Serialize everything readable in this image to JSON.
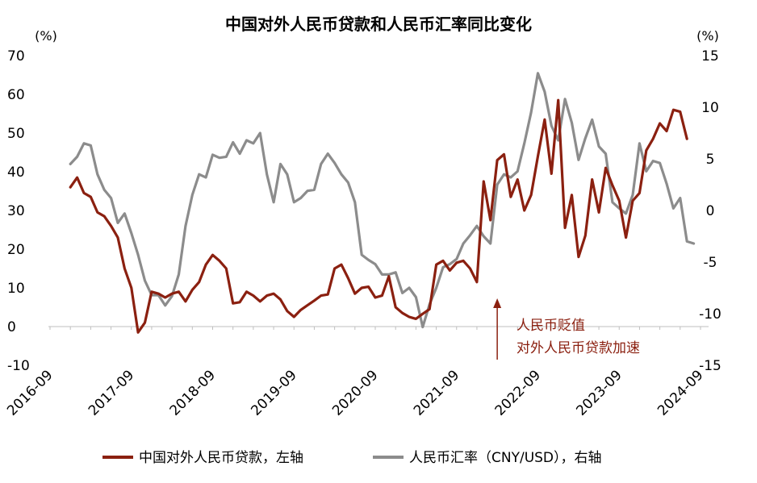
{
  "chart_data": {
    "type": "line",
    "title": "中国对外人民币贷款和人民币汇率同比变化",
    "left_unit": "(%)",
    "right_unit": "(%)",
    "left_axis": {
      "min": -10,
      "max": 70,
      "ticks": [
        -10,
        0,
        10,
        20,
        30,
        40,
        50,
        60,
        70
      ]
    },
    "right_axis": {
      "min": -15,
      "max": 15,
      "ticks": [
        -15,
        -10,
        -5,
        0,
        5,
        10,
        15
      ]
    },
    "x_tick_labels": [
      "2016-09",
      "2017-09",
      "2018-09",
      "2019-09",
      "2020-09",
      "2021-09",
      "2022-09",
      "2023-09",
      "2024-09"
    ],
    "x_start": "2016-09",
    "x_end": "2024-09",
    "series": [
      {
        "name": "中国对外人民币贷款，左轴",
        "axis": "left",
        "color": "#8B2010",
        "start": "2016-12",
        "values": [
          36,
          38.5,
          34.5,
          33.5,
          29.5,
          28.5,
          26,
          23,
          15,
          10,
          -1.5,
          1,
          9,
          8.5,
          7.5,
          8.5,
          9,
          6.5,
          9.5,
          11.5,
          16,
          18.5,
          17,
          15,
          6,
          6.3,
          9,
          8,
          6.5,
          8,
          8.5,
          7,
          4,
          2.5,
          4.3,
          5.5,
          6.7,
          8,
          8.3,
          15,
          16,
          12.5,
          8.5,
          10,
          10.3,
          7.5,
          8,
          13,
          5,
          3.5,
          2.5,
          2,
          3.3,
          4.5,
          16,
          17,
          14.5,
          16.5,
          17,
          15,
          11.5,
          37.5,
          27.5,
          43,
          44.5,
          33.5,
          38,
          30,
          34,
          44,
          53.5,
          39.5,
          58.5,
          25.5,
          34,
          18,
          23.5,
          38,
          29.5,
          41,
          36.5,
          32.5,
          23,
          32.5,
          34.5,
          45.5,
          48.5,
          52.5,
          50.5,
          56,
          55.5,
          48.5
        ]
      },
      {
        "name": "人民币汇率（CNY/USD），右轴",
        "axis": "right",
        "color": "#8C8C8C",
        "start": "2016-12",
        "values": [
          4.5,
          5.2,
          6.5,
          6.3,
          3.5,
          2,
          1.2,
          -1.2,
          -0.3,
          -2.2,
          -4.3,
          -6.8,
          -8.2,
          -8.2,
          -9.2,
          -8.3,
          -6.2,
          -1.5,
          1.5,
          3.5,
          3.2,
          5.4,
          5.1,
          5.2,
          6.6,
          5.5,
          6.8,
          6.5,
          7.5,
          3.5,
          0.8,
          4.5,
          3.5,
          0.8,
          1.2,
          1.9,
          2,
          4.5,
          5.5,
          4.6,
          3.5,
          2.7,
          0.8,
          -4.3,
          -4.8,
          -5.2,
          -6.2,
          -6.2,
          -6,
          -8,
          -7.5,
          -8.4,
          -11.3,
          -9.1,
          -7.5,
          -5.5,
          -5.2,
          -4.7,
          -3.2,
          -2.4,
          -1.5,
          -2.5,
          -3.2,
          2.5,
          3.5,
          3.2,
          3.8,
          6.5,
          9.5,
          13.3,
          11.5,
          8.2,
          6.8,
          10.8,
          8.5,
          4.9,
          7,
          8.8,
          6.2,
          5.5,
          0.8,
          0.2,
          -0.3,
          1.5,
          6.5,
          3.8,
          4.8,
          4.6,
          2.6,
          0.2,
          1.2,
          -3,
          -3.2
        ]
      }
    ],
    "annotation": {
      "lines": [
        "人民币贬值",
        "对外人民币贷款加速"
      ],
      "color": "#8B2010",
      "arrow_at": "2022-03"
    }
  }
}
